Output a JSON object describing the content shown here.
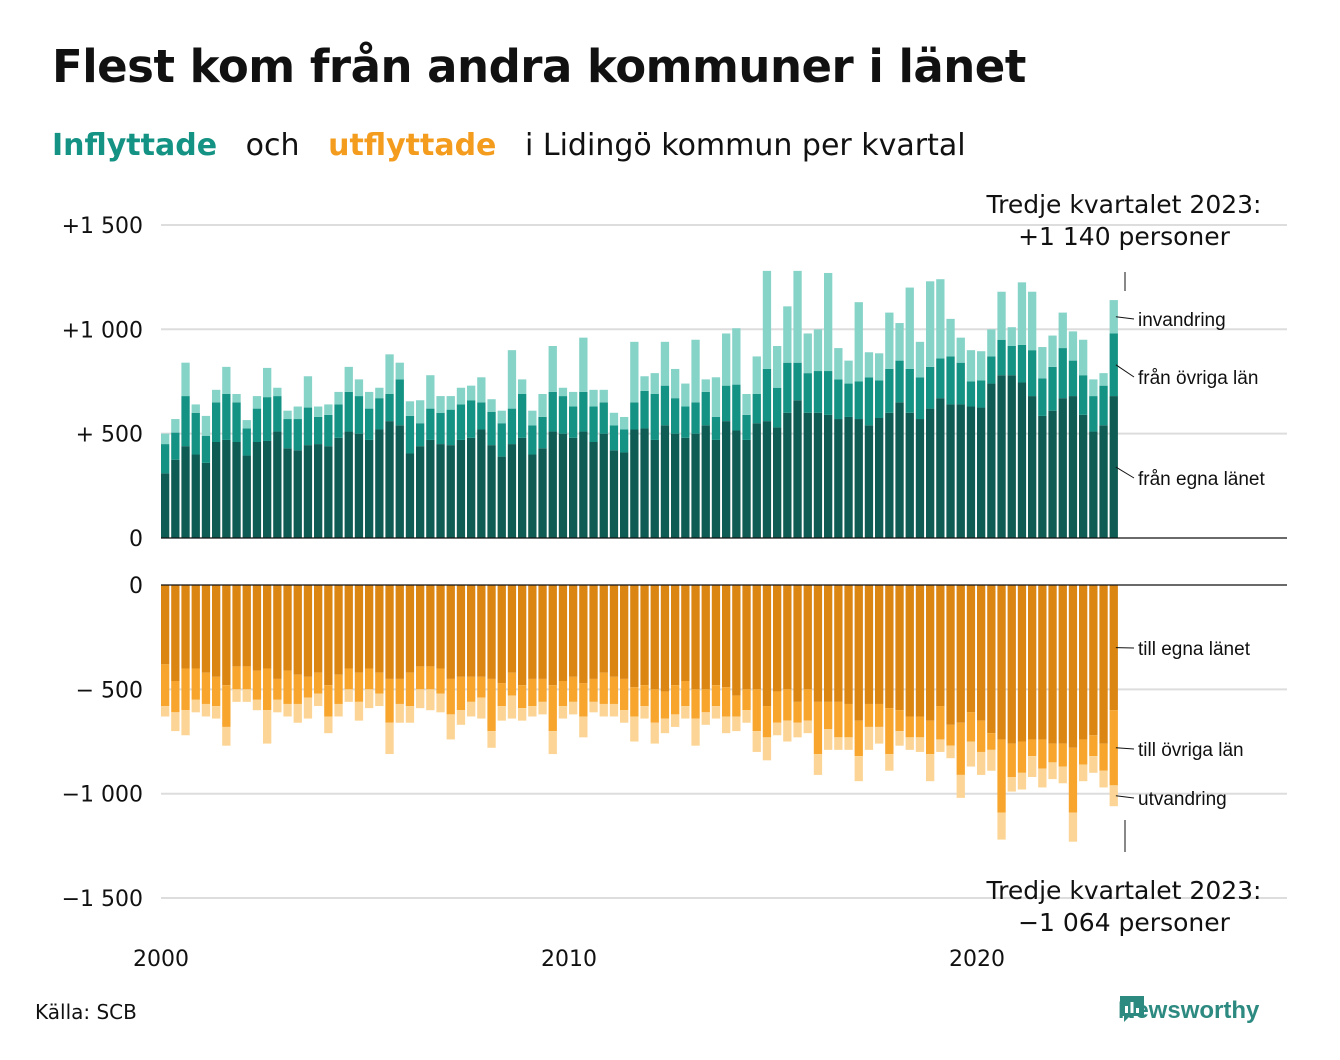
{
  "title": "Flest kom från andra kommuner i länet",
  "subtitle": {
    "inflow_word": "Inflyttade",
    "and_word": "och",
    "outflow_word": "utflyttade",
    "rest": "i Lidingö  kommun  per  kvartal"
  },
  "annotations": {
    "top_line1": "Tredje kvartalet 2023:",
    "top_line2": "+1 140 personer",
    "bottom_line1": "Tredje kvartalet 2023:",
    "bottom_line2": "−1 064 personer"
  },
  "source": "Källa: SCB",
  "brand": "Newsworthy",
  "colors": {
    "in_own": "#0E5C54",
    "in_other": "#149384",
    "in_immig": "#86D3C8",
    "out_own": "#DB8513",
    "out_other": "#F7A52C",
    "out_emig": "#FCD596",
    "grid": "#dddddd",
    "axis": "#111111"
  },
  "chart_data": [
    {
      "type": "bar",
      "stacked": true,
      "start_period": "2000 Q1",
      "end_period": "2023 Q3",
      "y_tick_labels": [
        "0",
        "+  500",
        "+1 000",
        "+1 500"
      ],
      "y_ticks": [
        0,
        500,
        1000,
        1500
      ],
      "ylim": [
        0,
        1500
      ],
      "x_tick_labels": [
        "2000",
        "2010",
        "2020"
      ],
      "grid": true,
      "series": [
        {
          "name": "från egna länet",
          "values": [
            310,
            375,
            440,
            400,
            360,
            460,
            470,
            460,
            395,
            460,
            465,
            510,
            430,
            420,
            445,
            450,
            440,
            480,
            510,
            500,
            470,
            520,
            560,
            540,
            405,
            440,
            470,
            450,
            445,
            470,
            480,
            520,
            445,
            390,
            450,
            480,
            400,
            430,
            510,
            500,
            480,
            510,
            460,
            500,
            420,
            410,
            520,
            525,
            470,
            540,
            500,
            480,
            500,
            540,
            470,
            560,
            515,
            470,
            550,
            560,
            530,
            600,
            660,
            600,
            600,
            590,
            570,
            580,
            570,
            540,
            575,
            600,
            650,
            600,
            570,
            620,
            670,
            640,
            640,
            630,
            625,
            740,
            780,
            780,
            745,
            680,
            585,
            610,
            670,
            680,
            590,
            510,
            540,
            680
          ]
        },
        {
          "name": "från övriga län",
          "values": [
            140,
            130,
            240,
            200,
            130,
            190,
            220,
            190,
            130,
            160,
            210,
            170,
            140,
            150,
            180,
            130,
            150,
            160,
            190,
            180,
            150,
            150,
            130,
            220,
            180,
            110,
            150,
            150,
            170,
            170,
            180,
            130,
            160,
            160,
            170,
            210,
            140,
            150,
            190,
            180,
            150,
            190,
            170,
            150,
            120,
            110,
            130,
            180,
            220,
            190,
            170,
            150,
            150,
            160,
            110,
            170,
            220,
            120,
            140,
            250,
            190,
            240,
            180,
            190,
            200,
            210,
            190,
            160,
            180,
            230,
            180,
            210,
            200,
            210,
            200,
            200,
            190,
            230,
            200,
            120,
            130,
            130,
            170,
            140,
            180,
            220,
            180,
            210,
            240,
            170,
            190,
            170,
            190,
            300
          ]
        },
        {
          "name": "invandring",
          "values": [
            50,
            65,
            160,
            40,
            95,
            60,
            130,
            40,
            40,
            60,
            140,
            40,
            40,
            60,
            150,
            50,
            50,
            60,
            120,
            80,
            80,
            50,
            190,
            80,
            70,
            110,
            160,
            80,
            65,
            80,
            70,
            120,
            60,
            60,
            280,
            70,
            70,
            110,
            220,
            40,
            70,
            260,
            80,
            60,
            60,
            60,
            290,
            70,
            100,
            210,
            140,
            110,
            300,
            60,
            190,
            250,
            270,
            100,
            180,
            470,
            200,
            270,
            440,
            190,
            200,
            470,
            150,
            110,
            380,
            120,
            130,
            270,
            180,
            390,
            170,
            410,
            380,
            180,
            120,
            150,
            140,
            130,
            230,
            90,
            300,
            280,
            150,
            150,
            170,
            140,
            170,
            80,
            60,
            160
          ]
        }
      ]
    },
    {
      "type": "bar",
      "stacked": true,
      "start_period": "2000 Q1",
      "end_period": "2023 Q3",
      "y_tick_labels": [
        "0",
        "−  500",
        "−1 000",
        "−1 500"
      ],
      "y_ticks": [
        0,
        -500,
        -1000,
        -1500
      ],
      "ylim": [
        -1500,
        0
      ],
      "x_tick_labels": [
        "2000",
        "2010",
        "2020"
      ],
      "grid": true,
      "series": [
        {
          "name": "till egna länet",
          "values": [
            -380,
            -460,
            -400,
            -400,
            -420,
            -440,
            -480,
            -390,
            -390,
            -410,
            -400,
            -450,
            -410,
            -430,
            -440,
            -420,
            -480,
            -430,
            -400,
            -420,
            -400,
            -420,
            -450,
            -450,
            -420,
            -390,
            -390,
            -400,
            -450,
            -440,
            -440,
            -440,
            -450,
            -470,
            -420,
            -480,
            -450,
            -450,
            -480,
            -460,
            -440,
            -470,
            -450,
            -420,
            -440,
            -450,
            -490,
            -480,
            -500,
            -510,
            -480,
            -460,
            -500,
            -500,
            -480,
            -490,
            -530,
            -500,
            -500,
            -580,
            -510,
            -500,
            -560,
            -500,
            -560,
            -560,
            -560,
            -570,
            -650,
            -570,
            -570,
            -590,
            -600,
            -630,
            -630,
            -650,
            -580,
            -670,
            -660,
            -610,
            -650,
            -710,
            -740,
            -760,
            -750,
            -740,
            -740,
            -760,
            -760,
            -780,
            -740,
            -720,
            -760,
            -600
          ]
        },
        {
          "name": "till övriga län",
          "values": [
            -200,
            -150,
            -200,
            -150,
            -150,
            -140,
            -200,
            -110,
            -110,
            -140,
            -200,
            -100,
            -160,
            -140,
            -100,
            -100,
            -150,
            -140,
            -100,
            -140,
            -100,
            -100,
            -210,
            -120,
            -160,
            -110,
            -110,
            -120,
            -170,
            -160,
            -120,
            -100,
            -250,
            -110,
            -110,
            -110,
            -130,
            -110,
            -220,
            -120,
            -120,
            -160,
            -110,
            -150,
            -130,
            -150,
            -140,
            -100,
            -160,
            -130,
            -140,
            -120,
            -140,
            -110,
            -100,
            -140,
            -100,
            -100,
            -200,
            -150,
            -150,
            -150,
            -100,
            -150,
            -250,
            -130,
            -170,
            -160,
            -170,
            -110,
            -110,
            -220,
            -100,
            -100,
            -100,
            -160,
            -160,
            -100,
            -250,
            -140,
            -150,
            -80,
            -350,
            -160,
            -150,
            -80,
            -140,
            -90,
            -110,
            -310,
            -120,
            -100,
            -130,
            -360
          ]
        },
        {
          "name": "utvandring",
          "values": [
            -50,
            -90,
            -120,
            -60,
            -60,
            -60,
            -90,
            -60,
            -60,
            -50,
            -160,
            -60,
            -60,
            -90,
            -100,
            -60,
            -80,
            -60,
            -60,
            -90,
            -90,
            -60,
            -150,
            -90,
            -80,
            -90,
            -100,
            -90,
            -120,
            -70,
            -70,
            -100,
            -80,
            -70,
            -110,
            -60,
            -50,
            -60,
            -110,
            -60,
            -60,
            -100,
            -50,
            -60,
            -60,
            -60,
            -120,
            -60,
            -100,
            -70,
            -60,
            -60,
            -130,
            -60,
            -60,
            -80,
            -70,
            -60,
            -100,
            -110,
            -60,
            -100,
            -70,
            -60,
            -100,
            -100,
            -60,
            -60,
            -120,
            -110,
            -80,
            -80,
            -70,
            -60,
            -70,
            -130,
            -60,
            -60,
            -110,
            -120,
            -110,
            -100,
            -130,
            -70,
            -80,
            -100,
            -90,
            -80,
            -80,
            -140,
            -80,
            -80,
            -80,
            -100
          ]
        }
      ]
    }
  ]
}
